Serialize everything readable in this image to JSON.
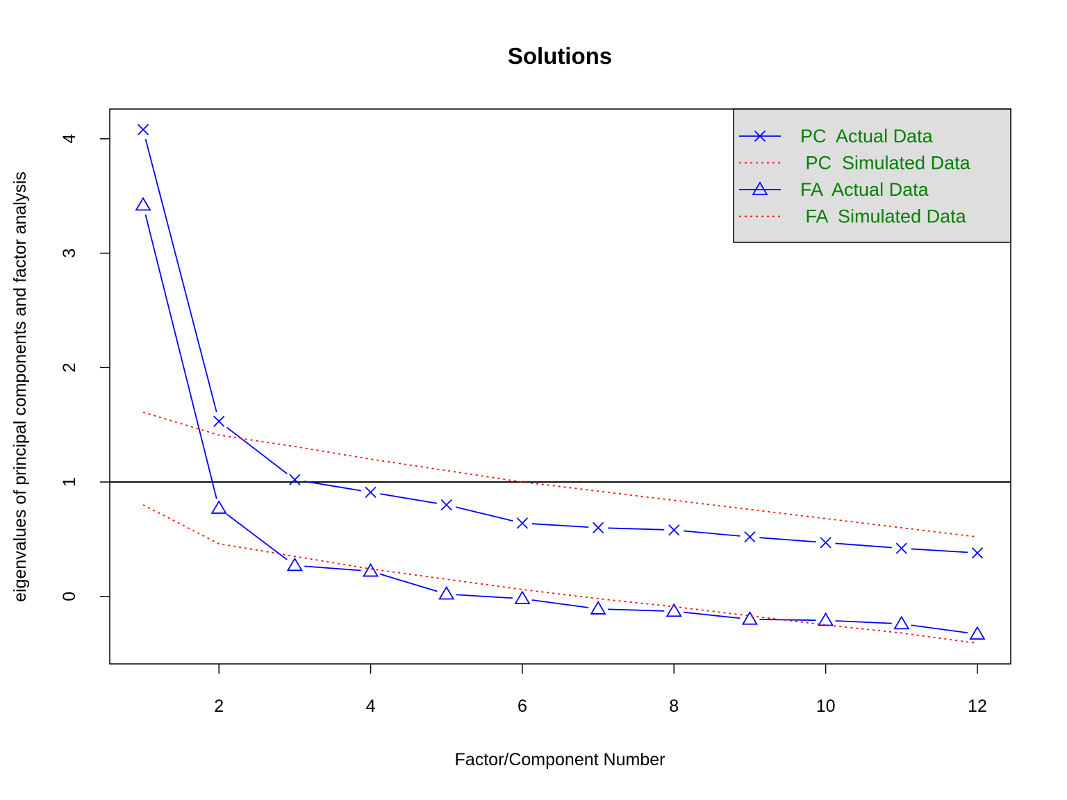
{
  "chart_data": {
    "type": "line",
    "title": "Solutions",
    "xlabel": "Factor/Component Number",
    "ylabel": "eigenvalues of principal components and factor analysis",
    "x": [
      1,
      2,
      3,
      4,
      5,
      6,
      7,
      8,
      9,
      10,
      11,
      12
    ],
    "xlim": [
      0.56,
      12.44
    ],
    "ylim": [
      -0.59,
      4.26
    ],
    "x_ticks": [
      2,
      4,
      6,
      8,
      10,
      12
    ],
    "y_ticks": [
      0,
      1,
      2,
      3,
      4
    ],
    "reference_line": {
      "y": 1
    },
    "grid": false,
    "legend_position": "top-right",
    "series": [
      {
        "name": "PC  Actual Data",
        "style": "solid",
        "marker": "cross",
        "color": "#0000ff",
        "values": [
          4.08,
          1.53,
          1.02,
          0.91,
          0.8,
          0.64,
          0.6,
          0.58,
          0.52,
          0.47,
          0.42,
          0.38
        ]
      },
      {
        "name": " PC  Simulated Data",
        "style": "dotted",
        "marker": "none",
        "color": "#ff0000",
        "values": [
          1.61,
          1.41,
          1.31,
          1.2,
          1.1,
          1.0,
          0.92,
          0.84,
          0.76,
          0.68,
          0.6,
          0.52
        ]
      },
      {
        "name": "FA  Actual Data",
        "style": "solid",
        "marker": "triangle",
        "color": "#0000ff",
        "values": [
          3.42,
          0.77,
          0.27,
          0.22,
          0.02,
          -0.02,
          -0.11,
          -0.13,
          -0.2,
          -0.21,
          -0.24,
          -0.33
        ]
      },
      {
        "name": " FA  Simulated Data",
        "style": "dotted",
        "marker": "none",
        "color": "#ff0000",
        "values": [
          0.8,
          0.46,
          0.35,
          0.24,
          0.15,
          0.06,
          -0.02,
          -0.09,
          -0.17,
          -0.25,
          -0.32,
          -0.41
        ]
      }
    ],
    "legend_text_color": "#008000",
    "legend_background": "#dedede"
  }
}
